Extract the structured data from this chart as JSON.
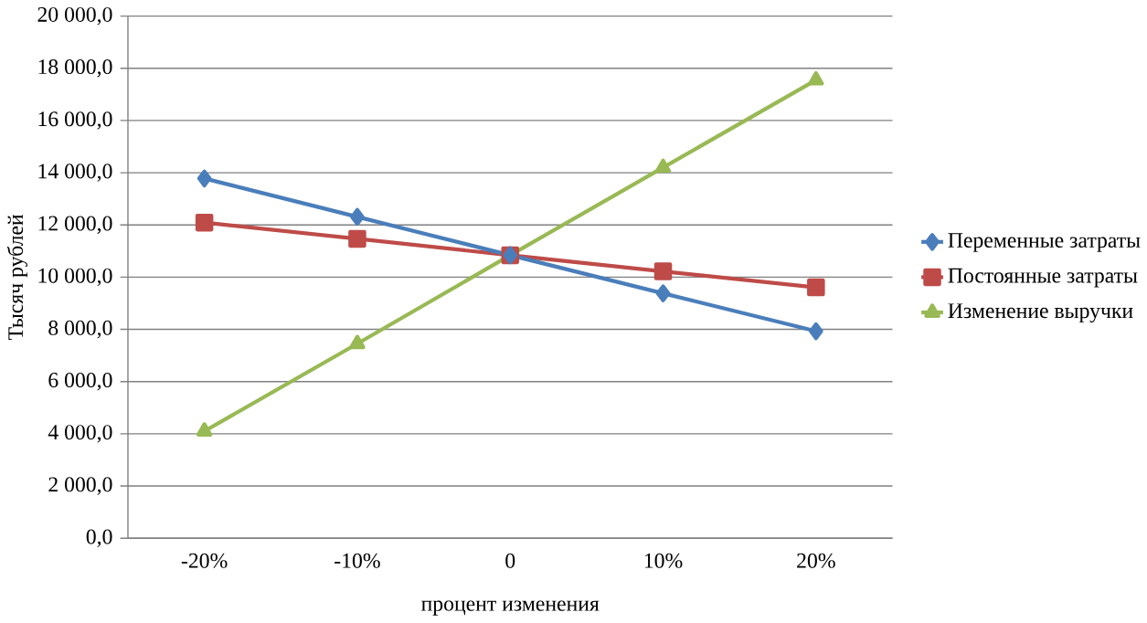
{
  "chart_data": {
    "type": "line",
    "xlabel": "процент изменения",
    "ylabel": "Тысяч рублей",
    "categories": [
      "-20%",
      "-10%",
      "0",
      "10%",
      "20%"
    ],
    "series": [
      {
        "name": "Переменные затраты",
        "color": "#4a7ebb",
        "marker": "diamond",
        "values": [
          13780,
          12310,
          10840,
          9380,
          7930
        ]
      },
      {
        "name": "Постоянные затраты",
        "color": "#be4b48",
        "marker": "square",
        "values": [
          12090,
          11470,
          10840,
          10220,
          9610
        ]
      },
      {
        "name": "Изменение выручки",
        "color": "#98b954",
        "marker": "triangle",
        "values": [
          4100,
          7450,
          10840,
          14200,
          17550
        ]
      }
    ],
    "ylim": [
      0,
      20000
    ],
    "yticks": [
      {
        "value": 0,
        "label": "0,0"
      },
      {
        "value": 2000,
        "label": "2 000,0"
      },
      {
        "value": 4000,
        "label": "4 000,0"
      },
      {
        "value": 6000,
        "label": "6 000,0"
      },
      {
        "value": 8000,
        "label": "8 000,0"
      },
      {
        "value": 10000,
        "label": "10 000,0"
      },
      {
        "value": 12000,
        "label": "12 000,0"
      },
      {
        "value": 14000,
        "label": "14 000,0"
      },
      {
        "value": 16000,
        "label": "16 000,0"
      },
      {
        "value": 18000,
        "label": "18 000,0"
      },
      {
        "value": 20000,
        "label": "20 000,0"
      }
    ],
    "grid": "y",
    "legend": "right",
    "line_style": "solid"
  }
}
